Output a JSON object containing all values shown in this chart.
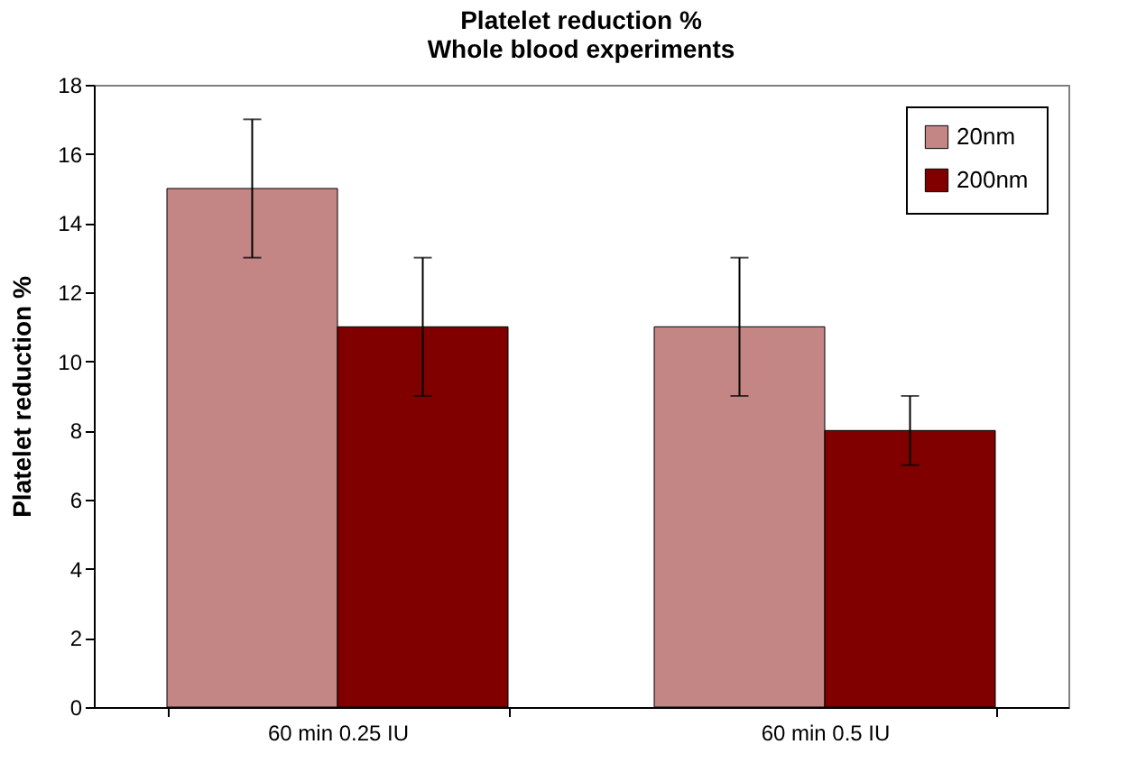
{
  "chart_data": {
    "type": "bar",
    "title": "Platelet reduction %",
    "subtitle": "Whole blood experiments",
    "ylabel": "Platelet reduction %",
    "categories": [
      "60 min 0.25 IU",
      "60 min 0.5 IU"
    ],
    "series": [
      {
        "name": "20nm",
        "color": "#c48585",
        "values": [
          15,
          11
        ],
        "errors": [
          2,
          2
        ]
      },
      {
        "name": "200nm",
        "color": "#800000",
        "values": [
          11,
          8
        ],
        "errors": [
          2,
          1
        ]
      }
    ],
    "ylim": [
      0,
      18
    ],
    "yticks": [
      0,
      2,
      4,
      6,
      8,
      10,
      12,
      14,
      16,
      18
    ],
    "grid": false,
    "legend": "top right"
  }
}
